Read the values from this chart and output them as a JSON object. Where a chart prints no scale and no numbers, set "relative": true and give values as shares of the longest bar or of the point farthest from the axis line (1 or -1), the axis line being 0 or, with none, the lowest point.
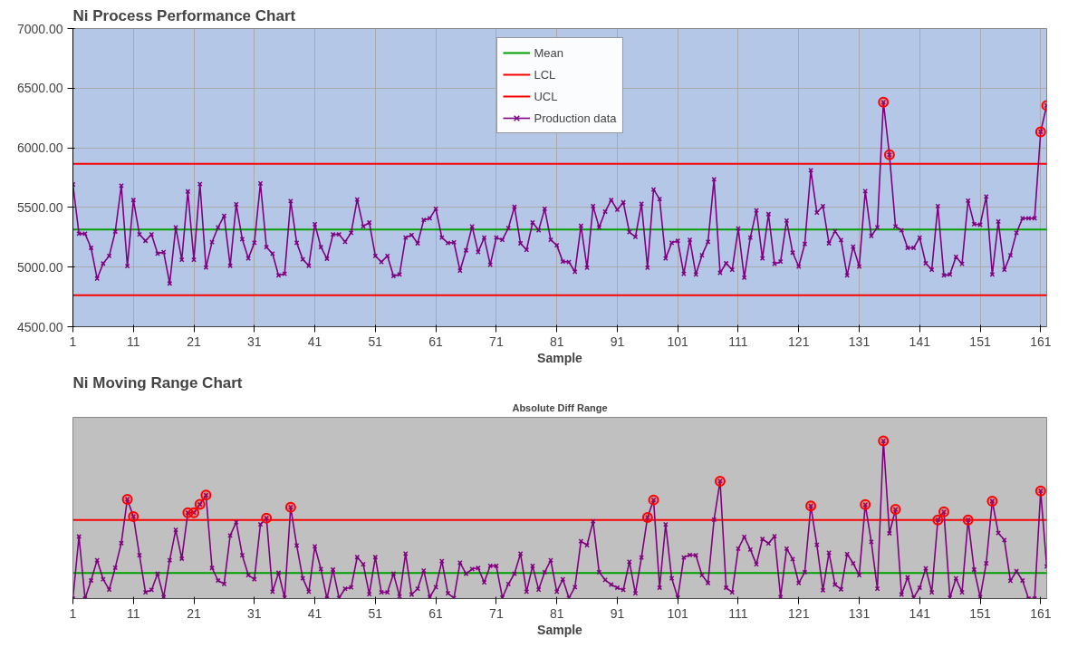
{
  "chart_data": [
    {
      "type": "line",
      "title": "Ni Process Performance Chart",
      "xlabel": "Sample",
      "marker": "cross",
      "grid": true,
      "legend": "top",
      "xlim": [
        1,
        162
      ],
      "xticks": [
        1,
        11,
        21,
        31,
        41,
        51,
        61,
        71,
        81,
        91,
        101,
        111,
        121,
        131,
        141,
        151,
        161
      ],
      "ylim": [
        4500,
        7000
      ],
      "yticks": [
        {
          "value": 4500,
          "label": "4500.00"
        },
        {
          "value": 5000,
          "label": "5000.00"
        },
        {
          "value": 5500,
          "label": "5500.00"
        },
        {
          "value": 6000,
          "label": "6000.00"
        },
        {
          "value": 6500,
          "label": "6500.00"
        },
        {
          "value": 7000,
          "label": "7000.00"
        }
      ],
      "ref_lines": [
        {
          "axis": "y",
          "value": 5315,
          "label": "Mean",
          "color": "#00a000"
        },
        {
          "axis": "y",
          "value": 4765,
          "label": "LCL",
          "color": "#ff0000"
        },
        {
          "axis": "y",
          "value": 5865,
          "label": "UCL",
          "color": "#ff0000"
        }
      ],
      "series": [
        {
          "name": "Production data",
          "color": "#800080",
          "x": [
            1,
            2,
            3,
            4,
            5,
            6,
            7,
            8,
            9,
            10,
            11,
            12,
            13,
            14,
            15,
            16,
            17,
            18,
            19,
            20,
            21,
            22,
            23,
            24,
            25,
            26,
            27,
            28,
            29,
            30,
            31,
            32,
            33,
            34,
            35,
            36,
            37,
            38,
            39,
            40,
            41,
            42,
            43,
            44,
            45,
            46,
            47,
            48,
            49,
            50,
            51,
            52,
            53,
            54,
            55,
            56,
            57,
            58,
            59,
            60,
            61,
            62,
            63,
            64,
            65,
            66,
            67,
            68,
            69,
            70,
            71,
            72,
            73,
            74,
            75,
            76,
            77,
            78,
            79,
            80,
            81,
            82,
            83,
            84,
            85,
            86,
            87,
            88,
            89,
            90,
            91,
            92,
            93,
            94,
            95,
            96,
            97,
            98,
            99,
            100,
            101,
            102,
            103,
            104,
            105,
            106,
            107,
            108,
            109,
            110,
            111,
            112,
            113,
            114,
            115,
            116,
            117,
            118,
            119,
            120,
            121,
            122,
            123,
            124,
            125,
            126,
            127,
            128,
            129,
            130,
            131,
            132,
            133,
            134,
            135,
            136,
            137,
            138,
            139,
            140,
            141,
            142,
            143,
            144,
            145,
            146,
            147,
            148,
            149,
            150,
            151,
            152,
            153,
            154,
            155,
            156,
            157,
            158,
            159,
            160,
            161,
            162
          ],
          "values": [
            5693,
            5280,
            5280,
            5161,
            4903,
            5030,
            5094,
            5298,
            5683,
            5008,
            5562,
            5274,
            5220,
            5274,
            5113,
            5126,
            4863,
            5333,
            5062,
            5634,
            5062,
            5696,
            4997,
            5210,
            5333,
            5430,
            5011,
            5527,
            5234,
            5073,
            5204,
            5702,
            5167,
            5113,
            4930,
            4944,
            5554,
            5204,
            5065,
            5011,
            5360,
            5167,
            5070,
            5274,
            5274,
            5212,
            5288,
            5567,
            5341,
            5374,
            5094,
            5043,
            5094,
            4925,
            4938,
            5247,
            5269,
            5199,
            5395,
            5409,
            5489,
            5247,
            5202,
            5207,
            4970,
            5140,
            5341,
            5126,
            5247,
            5019,
            5247,
            5228,
            5328,
            5505,
            5199,
            5145,
            5374,
            5309,
            5489,
            5228,
            5183,
            5046,
            5043,
            4960,
            5347,
            4995,
            5511,
            5333,
            5465,
            5562,
            5481,
            5543,
            5293,
            5253,
            5530,
            4995,
            5650,
            5570,
            5073,
            5204,
            5220,
            4944,
            5228,
            4938,
            5099,
            5212,
            5736,
            4952,
            5032,
            4978,
            5323,
            4911,
            5247,
            5476,
            5073,
            5444,
            5027,
            5046,
            5390,
            5121,
            5005,
            5194,
            5812,
            5457,
            5511,
            5199,
            5301,
            5226,
            4930,
            5172,
            5005,
            5637,
            5261,
            5333,
            6382,
            5941,
            5341,
            5309,
            5161,
            5161,
            5247,
            5032,
            4978,
            5511,
            4930,
            4938,
            5086,
            5027,
            5557,
            5360,
            5355,
            5591,
            4938,
            5382,
            4978,
            5099,
            5288,
            5409,
            5409,
            5409,
            6134,
            6355
          ]
        },
        {
          "type": "scatter",
          "marker": "circle",
          "color": "#ff0000",
          "x": [
            135,
            136,
            161,
            162
          ],
          "values": [
            6382,
            5941,
            6134,
            6355
          ]
        }
      ]
    },
    {
      "type": "line",
      "title": "Ni Moving Range Chart",
      "subtitle": "Absolute Diff Range",
      "xlabel": "Sample",
      "marker": "cross",
      "relative": true,
      "xlim": [
        1,
        162
      ],
      "xticks": [
        1,
        11,
        21,
        31,
        41,
        51,
        61,
        71,
        81,
        91,
        101,
        111,
        121,
        131,
        141,
        151,
        161
      ],
      "ref_lines": [
        {
          "axis": "y",
          "value": 0.162,
          "color": "#00a000"
        },
        {
          "axis": "y",
          "value": 0.499,
          "color": "#ff0000"
        }
      ],
      "series": [
        {
          "color": "#800080",
          "x": [
            1,
            2,
            3,
            4,
            5,
            6,
            7,
            8,
            9,
            10,
            11,
            12,
            13,
            14,
            15,
            16,
            17,
            18,
            19,
            20,
            21,
            22,
            23,
            24,
            25,
            26,
            27,
            28,
            29,
            30,
            31,
            32,
            33,
            34,
            35,
            36,
            37,
            38,
            39,
            40,
            41,
            42,
            43,
            44,
            45,
            46,
            47,
            48,
            49,
            50,
            51,
            52,
            53,
            54,
            55,
            56,
            57,
            58,
            59,
            60,
            61,
            62,
            63,
            64,
            65,
            66,
            67,
            68,
            69,
            70,
            71,
            72,
            73,
            74,
            75,
            76,
            77,
            78,
            79,
            80,
            81,
            82,
            83,
            84,
            85,
            86,
            87,
            88,
            89,
            90,
            91,
            92,
            93,
            94,
            95,
            96,
            97,
            98,
            99,
            100,
            101,
            102,
            103,
            104,
            105,
            106,
            107,
            108,
            109,
            110,
            111,
            112,
            113,
            114,
            115,
            116,
            117,
            118,
            119,
            120,
            121,
            122,
            123,
            124,
            125,
            126,
            127,
            128,
            129,
            130,
            131,
            132,
            133,
            134,
            135,
            136,
            137,
            138,
            139,
            140,
            141,
            142,
            143,
            144,
            145,
            146,
            147,
            148,
            149,
            150,
            151,
            152,
            153,
            154,
            155,
            156,
            157,
            158,
            159,
            160,
            161,
            162
          ],
          "values": [
            0,
            0.394,
            0,
            0.115,
            0.244,
            0.123,
            0.057,
            0.196,
            0.352,
            0.63,
            0.521,
            0.275,
            0.04,
            0.055,
            0.158,
            0.01,
            0.244,
            0.436,
            0.253,
            0.545,
            0.545,
            0.598,
            0.657,
            0.194,
            0.115,
            0.093,
            0.4,
            0.485,
            0.275,
            0.149,
            0.123,
            0.471,
            0.511,
            0.044,
            0.164,
            0.006,
            0.58,
            0.337,
            0.129,
            0.044,
            0.331,
            0.188,
            0,
            0.184,
            0.004,
            0.063,
            0.071,
            0.263,
            0.218,
            0.028,
            0.263,
            0.04,
            0.04,
            0.158,
            0.014,
            0.285,
            0.026,
            0.063,
            0.178,
            0.01,
            0.073,
            0.238,
            0.034,
            0.004,
            0.228,
            0.158,
            0.188,
            0.194,
            0.103,
            0.208,
            0.208,
            0.006,
            0.093,
            0.158,
            0.285,
            0.044,
            0.208,
            0.057,
            0.168,
            0.244,
            0.044,
            0.123,
            0.004,
            0.073,
            0.364,
            0.339,
            0.491,
            0.168,
            0.119,
            0.089,
            0.069,
            0.055,
            0.234,
            0.034,
            0.261,
            0.515,
            0.626,
            0.069,
            0.471,
            0.129,
            0.006,
            0.261,
            0.277,
            0.275,
            0.149,
            0.099,
            0.501,
            0.745,
            0.069,
            0.04,
            0.317,
            0.392,
            0.311,
            0.218,
            0.378,
            0.35,
            0.396,
            0.01,
            0.317,
            0.251,
            0.099,
            0.168,
            0.588,
            0.341,
            0.053,
            0.291,
            0.089,
            0.059,
            0.283,
            0.224,
            0.149,
            0.596,
            0.36,
            0.063,
            1,
            0.414,
            0.566,
            0.026,
            0.135,
            0.006,
            0.069,
            0.192,
            0.04,
            0.499,
            0.55,
            0.006,
            0.129,
            0.04,
            0.499,
            0.184,
            0.01,
            0.224,
            0.618,
            0.416,
            0.372,
            0.113,
            0.174,
            0.115,
            0,
            0,
            0.683,
            0.204
          ]
        },
        {
          "type": "scatter",
          "marker": "circle",
          "color": "#ff0000",
          "x": [
            10,
            11,
            20,
            21,
            22,
            23,
            33,
            37,
            96,
            97,
            108,
            123,
            132,
            135,
            137,
            144,
            145,
            149,
            153,
            161
          ],
          "values": [
            0.63,
            0.521,
            0.545,
            0.545,
            0.598,
            0.657,
            0.511,
            0.58,
            0.515,
            0.626,
            0.745,
            0.588,
            0.596,
            1,
            0.566,
            0.499,
            0.55,
            0.499,
            0.618,
            0.683
          ]
        }
      ]
    }
  ]
}
